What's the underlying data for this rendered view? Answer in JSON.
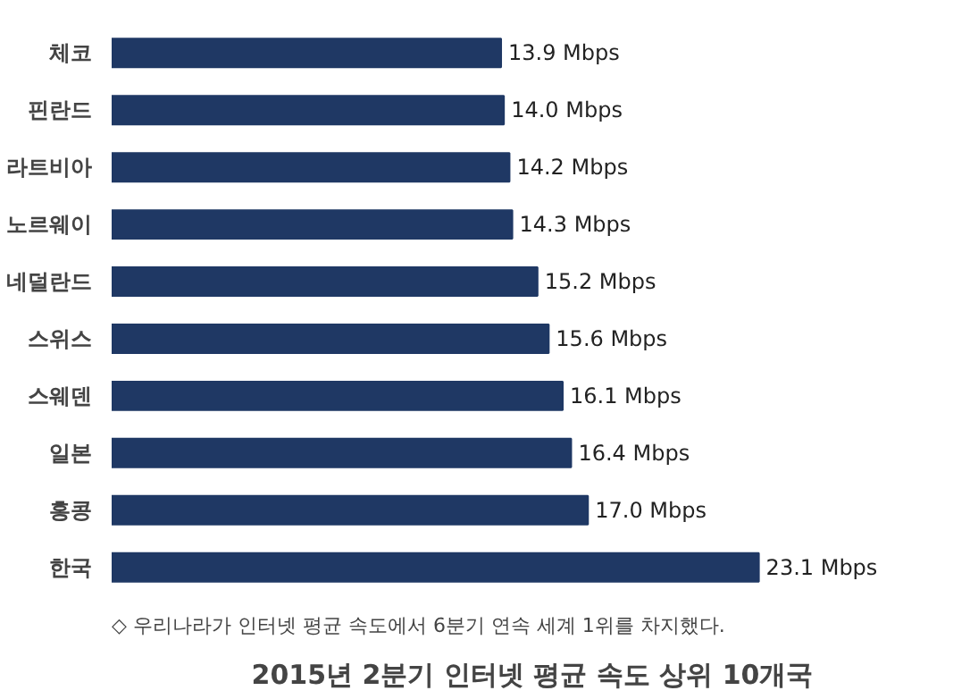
{
  "chart_data": {
    "type": "bar",
    "orientation": "horizontal",
    "title": "2015년 2분기 인터넷 평균 속도 상위 10개국",
    "categories": [
      "체코",
      "핀란드",
      "라트비아",
      "노르웨이",
      "네덜란드",
      "스위스",
      "스웨덴",
      "일본",
      "홍콩",
      "한국"
    ],
    "values": [
      13.9,
      14.0,
      14.2,
      14.3,
      15.2,
      15.6,
      16.1,
      16.4,
      17.0,
      23.1
    ],
    "value_labels": [
      "13.9 Mbps",
      "14.0 Mbps",
      "14.2 Mbps",
      "14.3 Mbps",
      "15.2 Mbps",
      "15.6 Mbps",
      "16.1 Mbps",
      "16.4 Mbps",
      "17.0 Mbps",
      "23.1 Mbps"
    ],
    "color": "#1f3864",
    "annotations": [
      "◇ 우리나라가 인터넷 평균 속도에서 6분기 연속 세계 1위를 차지했다."
    ]
  }
}
